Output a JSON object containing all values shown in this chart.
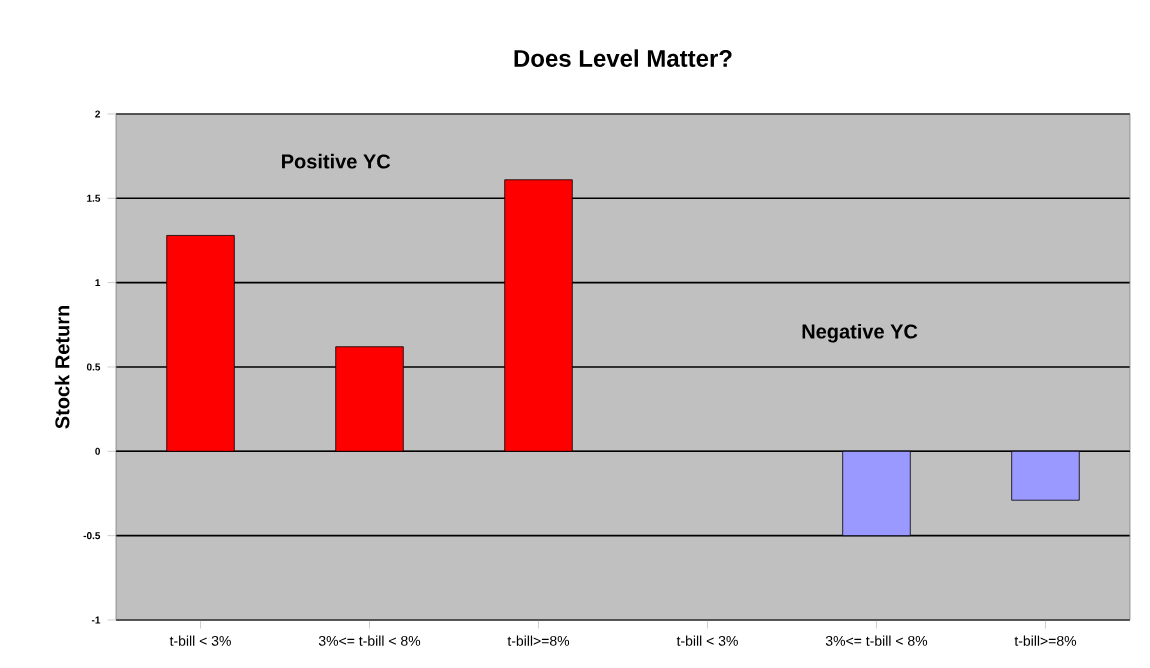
{
  "chart_data": {
    "type": "bar",
    "title": "Does Level Matter?",
    "ylabel": "Stock Return",
    "categories": [
      "t-bill < 3%",
      "3%<= t-bill < 8%",
      "t-bill>=8%",
      "t-bill < 3%",
      "3%<= t-bill < 8%",
      "t-bill>=8%"
    ],
    "values": [
      1.28,
      0.62,
      1.61,
      null,
      -0.5,
      -0.29
    ],
    "colors": [
      "#ff0000",
      "#ff0000",
      "#ff0000",
      "#ff0000",
      "#9999ff",
      "#9999ff"
    ],
    "ylim": [
      -1,
      2
    ],
    "yticks": [
      -1,
      -0.5,
      0,
      0.5,
      1,
      1.5,
      2
    ],
    "grid": "y",
    "annotations": [
      "Positive YC",
      "Negative YC"
    ]
  }
}
